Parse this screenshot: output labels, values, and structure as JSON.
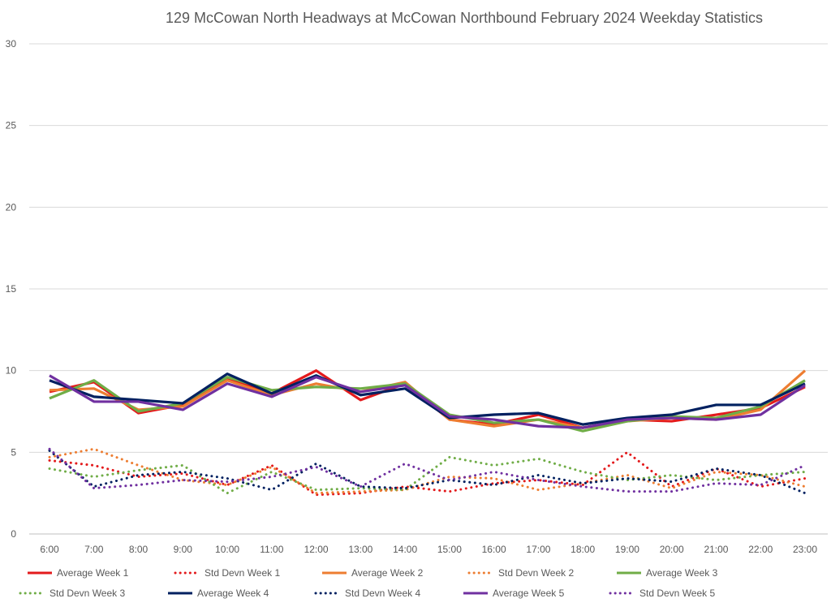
{
  "chart_data": {
    "type": "line",
    "title": "129 McCowan North Headways at McCowan Northbound February 2024 Weekday Statistics",
    "xlabel": "",
    "ylabel": "",
    "ylim": [
      0,
      30
    ],
    "yticks": [
      "0",
      "5",
      "10",
      "15",
      "20",
      "25",
      "30"
    ],
    "grid": true,
    "legend_position": "bottom",
    "categories": [
      "6:00",
      "7:00",
      "8:00",
      "9:00",
      "10:00",
      "11:00",
      "12:00",
      "13:00",
      "14:00",
      "15:00",
      "16:00",
      "17:00",
      "18:00",
      "19:00",
      "20:00",
      "21:00",
      "22:00",
      "23:00"
    ],
    "series": [
      {
        "name": "Average Week 1",
        "color": "#e31a1c",
        "style": "solid",
        "values": [
          8.7,
          9.3,
          7.4,
          7.9,
          9.5,
          8.6,
          10.0,
          8.2,
          9.2,
          7.0,
          6.7,
          7.3,
          6.5,
          7.0,
          6.9,
          7.3,
          7.7,
          9.0
        ]
      },
      {
        "name": "Std Devn Week 1",
        "color": "#e31a1c",
        "style": "dotted",
        "values": [
          4.5,
          4.2,
          3.5,
          3.7,
          3.0,
          4.2,
          2.4,
          2.5,
          2.9,
          2.6,
          3.1,
          3.3,
          3.0,
          5.0,
          2.9,
          4.0,
          2.9,
          3.4
        ]
      },
      {
        "name": "Average Week 2",
        "color": "#ed7d31",
        "style": "solid",
        "values": [
          8.8,
          8.9,
          7.6,
          7.8,
          9.4,
          8.5,
          9.2,
          8.7,
          9.3,
          7.0,
          6.6,
          7.0,
          6.5,
          6.9,
          7.1,
          7.0,
          7.6,
          10.0
        ]
      },
      {
        "name": "Std Devn Week 2",
        "color": "#ed7d31",
        "style": "dotted",
        "values": [
          4.7,
          5.2,
          4.2,
          3.3,
          3.0,
          4.1,
          2.5,
          2.6,
          2.7,
          3.5,
          3.4,
          2.7,
          3.1,
          3.6,
          2.8,
          3.8,
          3.6,
          2.9
        ]
      },
      {
        "name": "Average Week 3",
        "color": "#70ad47",
        "style": "solid",
        "values": [
          8.3,
          9.4,
          7.5,
          8.0,
          9.6,
          8.8,
          9.0,
          8.9,
          9.2,
          7.3,
          6.8,
          7.0,
          6.3,
          6.9,
          7.2,
          7.1,
          7.8,
          9.4
        ]
      },
      {
        "name": "Std Devn Week 3",
        "color": "#70ad47",
        "style": "dotted",
        "values": [
          4.0,
          3.5,
          3.9,
          4.2,
          2.5,
          3.8,
          2.7,
          2.8,
          2.7,
          4.7,
          4.2,
          4.6,
          3.8,
          3.3,
          3.6,
          3.3,
          3.6,
          3.8
        ]
      },
      {
        "name": "Average Week 4",
        "color": "#002060",
        "style": "solid",
        "values": [
          9.4,
          8.4,
          8.2,
          8.0,
          9.8,
          8.6,
          9.7,
          8.5,
          8.9,
          7.1,
          7.3,
          7.4,
          6.7,
          7.1,
          7.3,
          7.9,
          7.9,
          9.2
        ]
      },
      {
        "name": "Std Devn Week 4",
        "color": "#002060",
        "style": "dotted",
        "values": [
          5.1,
          2.9,
          3.6,
          3.8,
          3.4,
          2.7,
          4.3,
          2.9,
          2.8,
          3.3,
          3.0,
          3.6,
          3.1,
          3.4,
          3.2,
          4.0,
          3.6,
          2.5
        ]
      },
      {
        "name": "Average Week 5",
        "color": "#7030a0",
        "style": "solid",
        "values": [
          9.7,
          8.1,
          8.1,
          7.6,
          9.2,
          8.4,
          9.6,
          8.7,
          9.1,
          7.2,
          7.0,
          6.6,
          6.5,
          7.0,
          7.1,
          7.0,
          7.3,
          9.1
        ]
      },
      {
        "name": "Std Devn Week 5",
        "color": "#7030a0",
        "style": "dotted",
        "values": [
          5.2,
          2.8,
          3.0,
          3.3,
          3.2,
          3.5,
          4.1,
          2.9,
          4.3,
          3.3,
          3.8,
          3.3,
          2.9,
          2.6,
          2.6,
          3.1,
          3.0,
          4.2
        ]
      }
    ]
  }
}
